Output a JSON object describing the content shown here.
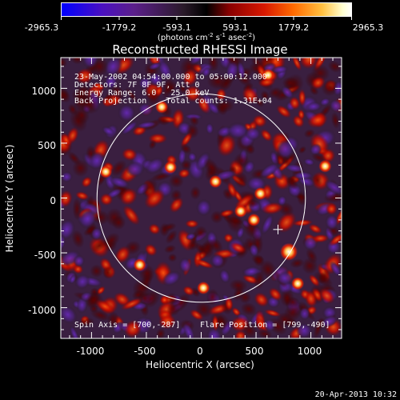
{
  "colorbar": {
    "ticks": [
      "-2965.3",
      "-1779.2",
      "-593.1",
      "593.1",
      "1779.2",
      "2965.3"
    ],
    "unit_prefix": "(photons cm",
    "unit_exp1": "-2",
    "unit_mid": " s",
    "unit_exp2": "-1",
    "unit_mid2": " asec",
    "unit_exp3": "-2",
    "unit_suffix": ")",
    "colors": [
      "#0000ff",
      "#5a0fb0",
      "#3a2a3a",
      "#000000",
      "#d01000",
      "#ff9000",
      "#ffffc0",
      "#ffffff"
    ]
  },
  "plot": {
    "title": "Reconstructed RHESSI Image",
    "info_lines": [
      "23-May-2002 04:54:00.000 to 05:00:12.000",
      "Detectors: 7F 8F 9F, Att 0",
      "Energy Range: 6.0 - 25.0 keV",
      "Back Projection    Total counts: 1.31E+04"
    ],
    "spin_axis": "Spin Axis = [700,-287]",
    "flare_position": "Flare Position = [799,-490]",
    "xlabel": "Heliocentric X (arcsec)",
    "ylabel": "Heliocentric Y (arcsec)",
    "xticks": [
      "-1000",
      "-500",
      "0",
      "500",
      "1000"
    ],
    "yticks": [
      "1000",
      "500",
      "0",
      "-500",
      "-1000"
    ],
    "xlim": [
      -1280,
      1280
    ],
    "ylim": [
      -1280,
      1280
    ],
    "solar_disk_radius": 950,
    "spin_axis_xy": [
      700,
      -287
    ],
    "flare_xy": [
      799,
      -490
    ]
  },
  "timestamp": "20-Apr-2013 10:32"
}
